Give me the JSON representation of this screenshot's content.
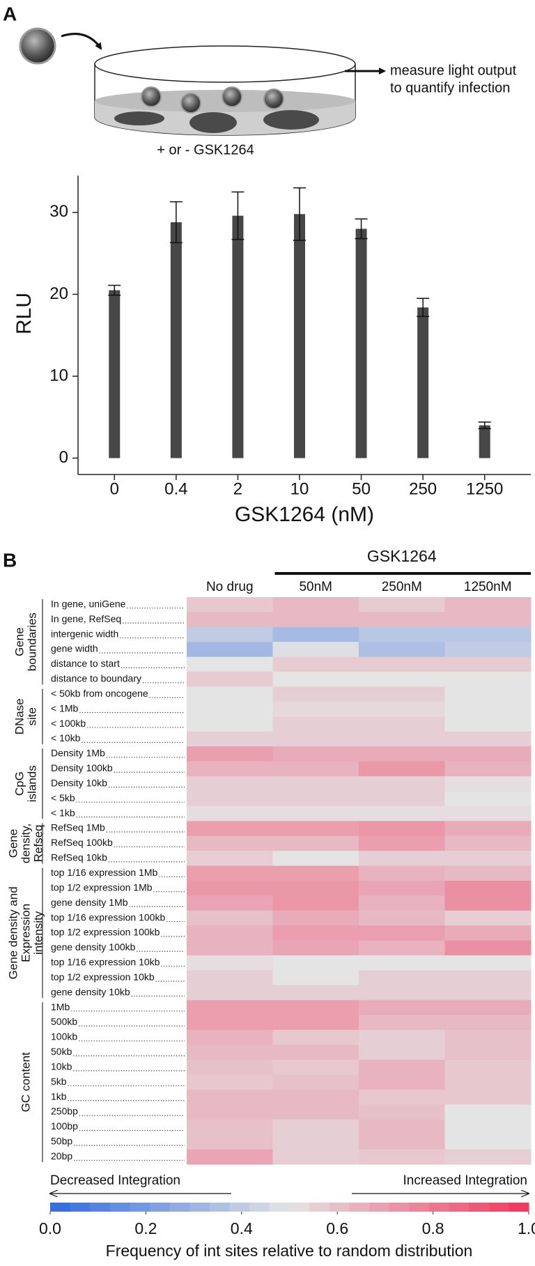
{
  "panels": [
    "A",
    "B"
  ],
  "illustration": {
    "readout": [
      "measure light output",
      "to quantify infection"
    ],
    "treatment": "+ or - GSK1264"
  },
  "chart_data": [
    {
      "type": "bar",
      "x_label": "GSK1264 (nM)",
      "y_label": "RLU",
      "categories": [
        "0",
        "0.4",
        "2",
        "10",
        "50",
        "250",
        "1250"
      ],
      "values": [
        20.5,
        28.8,
        29.6,
        29.8,
        28.0,
        18.4,
        4.0
      ],
      "error": [
        0.6,
        2.5,
        2.9,
        3.2,
        1.2,
        1.1,
        0.4
      ],
      "color": "#474747",
      "ylim": [
        -2,
        34.5
      ],
      "yticks": [
        0,
        10,
        20,
        30
      ],
      "grid": false
    },
    {
      "type": "heatmap",
      "column_group_label": "GSK1264",
      "columns": [
        "No drug",
        "50nM",
        "250nM",
        "1250nM"
      ],
      "row_groups": [
        {
          "label": [
            "Gene",
            "boundaries"
          ],
          "rows": [
            "In gene, uniGene",
            "In gene, RefSeq",
            "intergenic width",
            "gene width",
            "distance to start",
            "distance to boundary"
          ]
        },
        {
          "label": [
            "DNase",
            "site"
          ],
          "rows": [
            "< 50kb from oncogene",
            "< 1Mb",
            "< 100kb",
            "< 10kb"
          ]
        },
        {
          "label": [
            "CpG",
            "islands"
          ],
          "rows": [
            "Density 1Mb",
            "Density 100kb",
            "Density 10kb",
            "< 5kb",
            "< 1kb"
          ]
        },
        {
          "label": [
            "Gene",
            "density,",
            "Refseq"
          ],
          "rows": [
            "RefSeq 1Mb",
            "RefSeq 100kb",
            "RefSeq 10kb"
          ]
        },
        {
          "label": [
            "Gene density and",
            "Expression",
            "intensity"
          ],
          "rows": [
            "top 1/16 expression 1Mb",
            "top 1/2 expression 1Mb",
            "gene density 1Mb",
            "top 1/16 expression 100kb",
            "top 1/2 expression 100kb",
            "gene density 100kb",
            "top 1/16 expression 10kb",
            "top 1/2 expression 10kb",
            "gene density 10kb"
          ]
        },
        {
          "label": [
            "GC content"
          ],
          "rows": [
            "1Mb",
            "500kb",
            "100kb",
            "50kb",
            "10kb",
            "5kb",
            "1kb",
            "250bp",
            "100bp",
            "50bp",
            "20bp"
          ]
        }
      ],
      "values": [
        [
          0.58,
          0.62,
          0.57,
          0.62
        ],
        [
          0.62,
          0.62,
          0.62,
          0.62
        ],
        [
          0.4,
          0.33,
          0.38,
          0.38
        ],
        [
          0.32,
          0.48,
          0.35,
          0.4
        ],
        [
          0.5,
          0.57,
          0.57,
          0.57
        ],
        [
          0.57,
          0.5,
          0.5,
          0.5
        ],
        [
          0.5,
          0.56,
          0.56,
          0.5
        ],
        [
          0.5,
          0.53,
          0.53,
          0.5
        ],
        [
          0.5,
          0.56,
          0.56,
          0.5
        ],
        [
          0.56,
          0.56,
          0.56,
          0.56
        ],
        [
          0.7,
          0.66,
          0.66,
          0.66
        ],
        [
          0.64,
          0.64,
          0.72,
          0.64
        ],
        [
          0.56,
          0.56,
          0.56,
          0.52
        ],
        [
          0.56,
          0.56,
          0.56,
          0.5
        ],
        [
          0.52,
          0.52,
          0.52,
          0.52
        ],
        [
          0.7,
          0.7,
          0.72,
          0.66
        ],
        [
          0.62,
          0.62,
          0.7,
          0.62
        ],
        [
          0.56,
          0.5,
          0.56,
          0.56
        ],
        [
          0.7,
          0.7,
          0.64,
          0.62
        ],
        [
          0.72,
          0.72,
          0.68,
          0.74
        ],
        [
          0.68,
          0.72,
          0.64,
          0.74
        ],
        [
          0.6,
          0.66,
          0.62,
          0.56
        ],
        [
          0.64,
          0.7,
          0.7,
          0.66
        ],
        [
          0.64,
          0.68,
          0.64,
          0.74
        ],
        [
          0.52,
          0.5,
          0.5,
          0.5
        ],
        [
          0.56,
          0.5,
          0.56,
          0.56
        ],
        [
          0.56,
          0.56,
          0.56,
          0.56
        ],
        [
          0.7,
          0.7,
          0.66,
          0.66
        ],
        [
          0.7,
          0.7,
          0.62,
          0.62
        ],
        [
          0.64,
          0.58,
          0.56,
          0.6
        ],
        [
          0.62,
          0.62,
          0.56,
          0.6
        ],
        [
          0.6,
          0.58,
          0.64,
          0.58
        ],
        [
          0.58,
          0.6,
          0.64,
          0.58
        ],
        [
          0.62,
          0.62,
          0.58,
          0.58
        ],
        [
          0.62,
          0.62,
          0.6,
          0.5
        ],
        [
          0.6,
          0.56,
          0.62,
          0.5
        ],
        [
          0.6,
          0.56,
          0.62,
          0.5
        ],
        [
          0.68,
          0.56,
          0.58,
          0.56
        ]
      ],
      "colormap": [
        "#2e6ae0",
        "#e4e4e4",
        "#f2345c"
      ],
      "vlim": [
        0,
        1
      ],
      "colorbar_ticks": [
        {
          "value": 0,
          "label": "0.0"
        },
        {
          "value": 0.2,
          "label": "0.2"
        },
        {
          "value": 0.4,
          "label": "0.4"
        },
        {
          "value": 0.6,
          "label": "0.6"
        },
        {
          "value": 0.8,
          "label": "0.8"
        },
        {
          "value": 1,
          "label": "1.0"
        }
      ],
      "colorbar_label": "Frequency of int sites relative to random distribution",
      "annotations": [
        "Decreased Integration",
        "Increased Integration"
      ]
    }
  ]
}
